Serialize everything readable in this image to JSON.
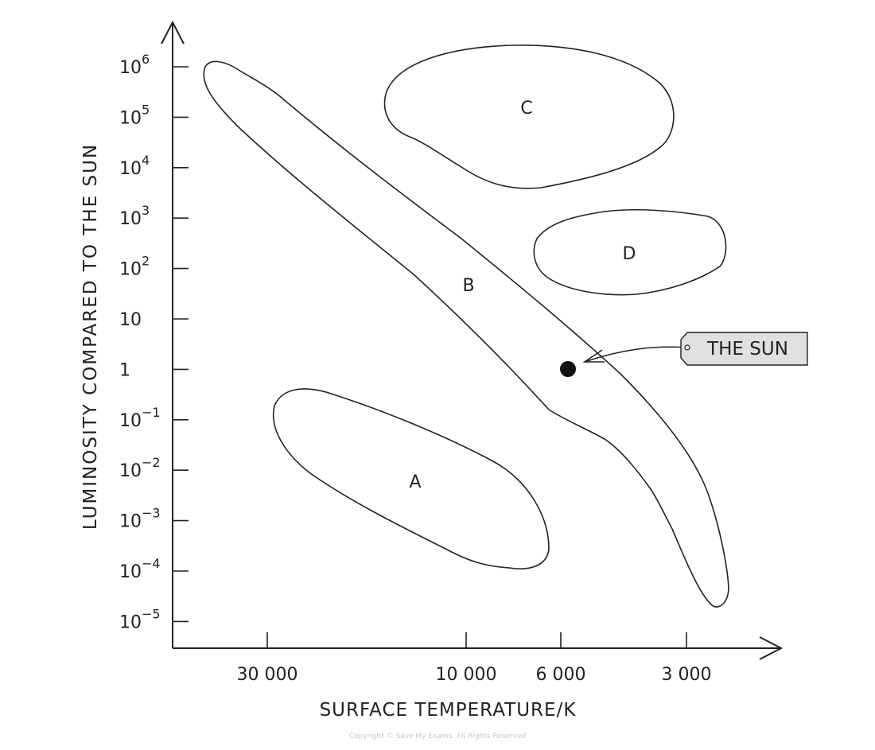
{
  "axes": {
    "y_label": "LUMINOSITY COMPARED TO THE SUN",
    "x_label": "SURFACE TEMPERATURE/K",
    "y_ticks": [
      {
        "base": "10",
        "sup": "6"
      },
      {
        "base": "10",
        "sup": "5"
      },
      {
        "base": "10",
        "sup": "4"
      },
      {
        "base": "10",
        "sup": "3"
      },
      {
        "base": "10",
        "sup": "2"
      },
      {
        "base": "10"
      },
      {
        "base": "1"
      },
      {
        "base": "10",
        "sup": "−1"
      },
      {
        "base": "10",
        "sup": "−2"
      },
      {
        "base": "10",
        "sup": "−3"
      },
      {
        "base": "10",
        "sup": "−4"
      },
      {
        "base": "10",
        "sup": "−5"
      }
    ],
    "x_ticks": [
      "30 000",
      "10 000",
      "6 000",
      "3 000"
    ]
  },
  "regions": [
    "A",
    "B",
    "C",
    "D"
  ],
  "sun_label": "THE SUN",
  "copyright": "Copyright © Save My Exams. All Rights Reserved"
}
